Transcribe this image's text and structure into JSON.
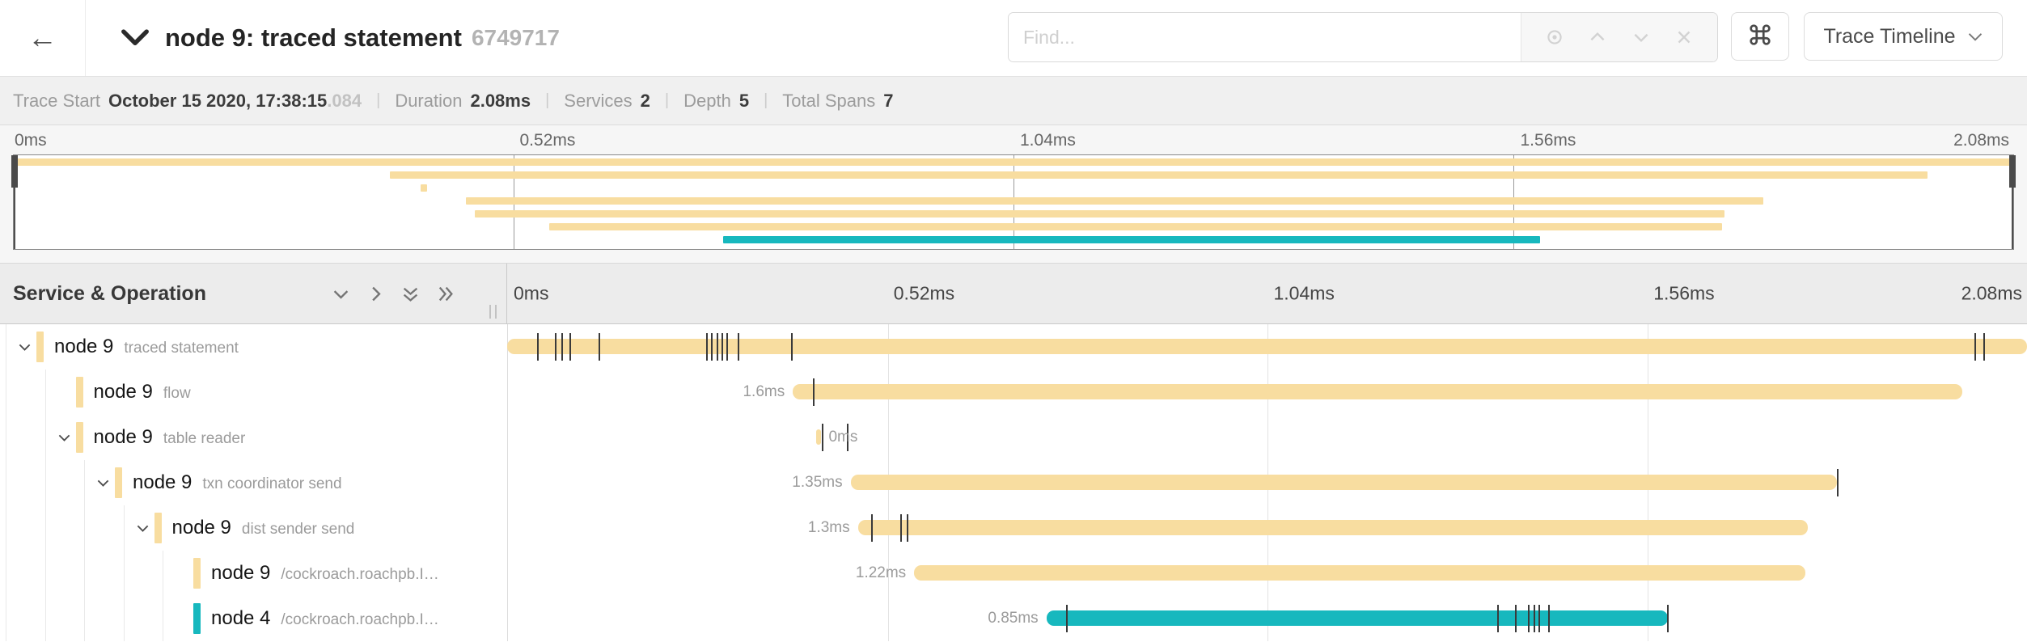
{
  "colors": {
    "tan": "#F8DDA0",
    "teal": "#17B8BE",
    "tick": "#3a3a3a"
  },
  "header": {
    "title": "node 9: traced statement",
    "trace_id": "6749717",
    "find_placeholder": "Find...",
    "view_dropdown_label": "Trace Timeline"
  },
  "summary": {
    "items": [
      {
        "label": "Trace Start",
        "value": "October 15 2020, 17:38:15",
        "suffix": ".084"
      },
      {
        "label": "Duration",
        "value": "2.08ms"
      },
      {
        "label": "Services",
        "value": "2"
      },
      {
        "label": "Depth",
        "value": "5"
      },
      {
        "label": "Total Spans",
        "value": "7"
      }
    ]
  },
  "minimap": {
    "axis": [
      "0ms",
      "0.52ms",
      "1.04ms",
      "1.56ms",
      "2.08ms"
    ]
  },
  "timeline": {
    "section_title": "Service & Operation",
    "axis": [
      "0ms",
      "0.52ms",
      "1.04ms",
      "1.56ms",
      "2.08ms"
    ],
    "total_ms": 2.08,
    "spans": [
      {
        "service": "node 9",
        "operation": "traced statement",
        "depth": 0,
        "expandable": true,
        "color": "tan",
        "start_ms": 0,
        "duration_ms": 2.08,
        "duration_label": "",
        "label_side": "none",
        "ticks_ms": [
          0.042,
          0.066,
          0.075,
          0.086,
          0.126,
          0.273,
          0.28,
          0.288,
          0.294,
          0.301,
          0.317,
          0.39,
          2.009,
          2.021
        ]
      },
      {
        "service": "node 9",
        "operation": "flow",
        "depth": 1,
        "expandable": false,
        "color": "tan",
        "start_ms": 0.391,
        "duration_ms": 1.6,
        "duration_label": "1.6ms",
        "label_side": "left",
        "ticks_ms": [
          0.42
        ]
      },
      {
        "service": "node 9",
        "operation": "table reader",
        "depth": 1,
        "expandable": true,
        "color": "tan",
        "start_ms": 0.423,
        "duration_ms": 0.007,
        "duration_label": "0ms",
        "label_side": "right",
        "ticks_ms": [
          0.432,
          0.466
        ]
      },
      {
        "service": "node 9",
        "operation": "txn coordinator send",
        "depth": 2,
        "expandable": true,
        "color": "tan",
        "start_ms": 0.47,
        "duration_ms": 1.35,
        "duration_label": "1.35ms",
        "label_side": "left",
        "ticks_ms": [
          1.821
        ]
      },
      {
        "service": "node 9",
        "operation": "dist sender send",
        "depth": 3,
        "expandable": true,
        "color": "tan",
        "start_ms": 0.48,
        "duration_ms": 1.3,
        "duration_label": "1.3ms",
        "label_side": "left",
        "ticks_ms": [
          0.499,
          0.539,
          0.548
        ]
      },
      {
        "service": "node 9",
        "operation": "/cockroach.roachpb.I…",
        "depth": 4,
        "expandable": false,
        "color": "tan",
        "start_ms": 0.557,
        "duration_ms": 1.22,
        "duration_label": "1.22ms",
        "label_side": "left",
        "ticks_ms": []
      },
      {
        "service": "node 4",
        "operation": "/cockroach.roachpb.I…",
        "depth": 4,
        "expandable": false,
        "color": "teal",
        "start_ms": 0.738,
        "duration_ms": 0.85,
        "duration_label": "0.85ms",
        "label_side": "left",
        "ticks_ms": [
          0.766,
          1.356,
          1.38,
          1.398,
          1.406,
          1.412,
          1.426,
          1.588
        ]
      }
    ]
  }
}
